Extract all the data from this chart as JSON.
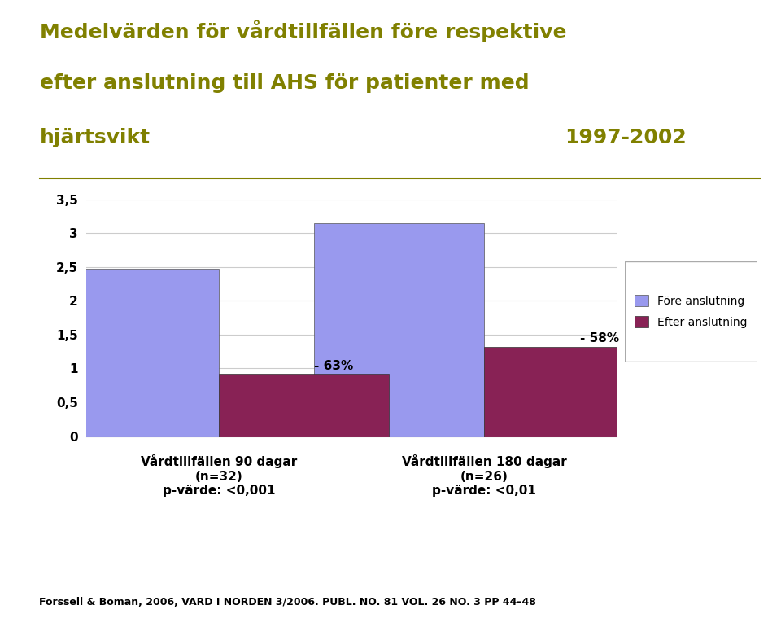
{
  "title_line1": "Medelvärden för vårdtillfällen före respektive",
  "title_line2": "efter anslutning till AHS för patienter med",
  "title_line3_left": "hjärtsvikt",
  "title_line3_right": "1997-2002",
  "title_color": "#808000",
  "sidebar_color": "#808000",
  "group1_label_lines": [
    "Vårdtillfällen 90 dagar",
    "(n=32)",
    "p-värde: <0,001"
  ],
  "group2_label_lines": [
    "Vårdtillfällen 180 dagar",
    "(n=26)",
    "p-värde: <0,01"
  ],
  "fore_values": [
    2.48,
    3.15
  ],
  "efter_values": [
    0.92,
    1.32
  ],
  "fore_color": "#9999ee",
  "efter_color": "#882255",
  "percent_labels": [
    "- 63%",
    "- 58%"
  ],
  "legend_fore": "Före anslutning",
  "legend_efter": "Efter anslutning",
  "ylim": [
    0,
    3.5
  ],
  "yticks": [
    0,
    0.5,
    1.0,
    1.5,
    2.0,
    2.5,
    3.0,
    3.5
  ],
  "ytick_labels": [
    "0",
    "0,5",
    "1",
    "1,5",
    "2",
    "2,5",
    "3",
    "3,5"
  ],
  "citation": "Forssell & Boman, 2006, VARD I NORDEN 3/2006. PUBL. NO. 81 VOL. 26 NO. 3 PP 44–48",
  "background_color": "#ffffff",
  "bar_width": 0.32
}
